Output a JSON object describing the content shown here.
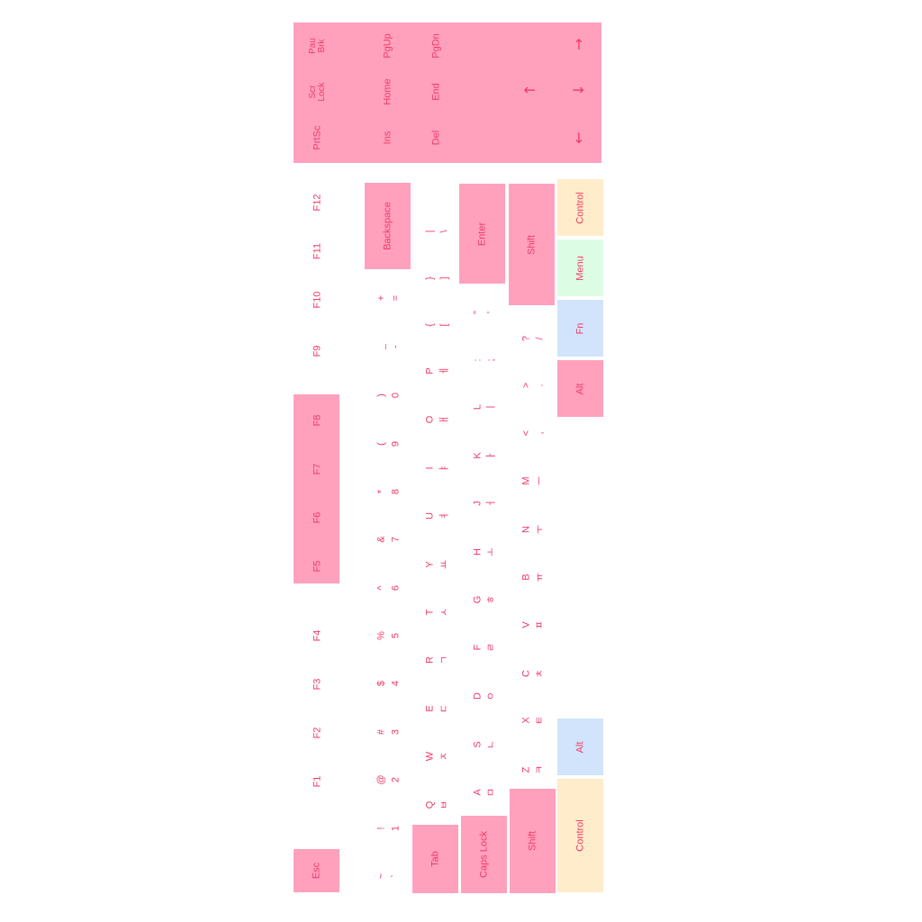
{
  "colors": {
    "pink": "#ffa1bd",
    "cream": "#ffecca",
    "mint": "#dcfde4",
    "blue": "#d1e4fb",
    "text": "#f03a6a"
  },
  "nav_cluster": {
    "prtsc": "PrtSc",
    "scrlock": "Scr\nLock",
    "pause": "Pau\nBrk",
    "ins": "Ins",
    "home": "Home",
    "pgup": "PgUp",
    "del": "Del",
    "end": "End",
    "pgdn": "PgDn",
    "arrow_up": "↑",
    "arrow_left": "←",
    "arrow_down": "↓",
    "arrow_right": "→"
  },
  "function_row": {
    "esc": "Esc",
    "keys": [
      "F1",
      "F2",
      "F3",
      "F4",
      "F5",
      "F6",
      "F7",
      "F8",
      "F9",
      "F10",
      "F11",
      "F12"
    ]
  },
  "number_row": {
    "keys": [
      {
        "shift": "~",
        "base": "`"
      },
      {
        "shift": "!",
        "base": "1"
      },
      {
        "shift": "@",
        "base": "2"
      },
      {
        "shift": "#",
        "base": "3"
      },
      {
        "shift": "$",
        "base": "4"
      },
      {
        "shift": "%",
        "base": "5"
      },
      {
        "shift": "^",
        "base": "6"
      },
      {
        "shift": "&",
        "base": "7"
      },
      {
        "shift": "*",
        "base": "8"
      },
      {
        "shift": "(",
        "base": "9"
      },
      {
        "shift": ")",
        "base": "0"
      },
      {
        "shift": "_",
        "base": "-"
      },
      {
        "shift": "+",
        "base": "="
      }
    ],
    "backspace": "Backspace"
  },
  "top_row": {
    "tab": "Tab",
    "keys": [
      {
        "latin": "Q",
        "hangul": "ㅂ"
      },
      {
        "latin": "W",
        "hangul": "ㅈ"
      },
      {
        "latin": "E",
        "hangul": "ㄷ"
      },
      {
        "latin": "R",
        "hangul": "ㄱ"
      },
      {
        "latin": "T",
        "hangul": "ㅅ"
      },
      {
        "latin": "Y",
        "hangul": "ㅛ"
      },
      {
        "latin": "U",
        "hangul": "ㅕ"
      },
      {
        "latin": "I",
        "hangul": "ㅑ"
      },
      {
        "latin": "O",
        "hangul": "ㅐ"
      },
      {
        "latin": "P",
        "hangul": "ㅔ"
      },
      {
        "latin": "{",
        "hangul": "["
      },
      {
        "latin": "}",
        "hangul": "]"
      },
      {
        "latin": "|",
        "hangul": "\\"
      }
    ]
  },
  "home_row": {
    "caps": "Caps Lock",
    "keys": [
      {
        "latin": "A",
        "hangul": "ㅁ"
      },
      {
        "latin": "S",
        "hangul": "ㄴ"
      },
      {
        "latin": "D",
        "hangul": "ㅇ"
      },
      {
        "latin": "F",
        "hangul": "ㄹ"
      },
      {
        "latin": "G",
        "hangul": "ㅎ"
      },
      {
        "latin": "H",
        "hangul": "ㅗ"
      },
      {
        "latin": "J",
        "hangul": "ㅓ"
      },
      {
        "latin": "K",
        "hangul": "ㅏ"
      },
      {
        "latin": "L",
        "hangul": "ㅣ"
      },
      {
        "latin": ":",
        "hangul": ";"
      },
      {
        "latin": "\"",
        "hangul": "'"
      }
    ],
    "enter": "Enter"
  },
  "bottom_row": {
    "shift_left": "Shift",
    "keys": [
      {
        "latin": "Z",
        "hangul": "ㅋ"
      },
      {
        "latin": "X",
        "hangul": "ㅌ"
      },
      {
        "latin": "C",
        "hangul": "ㅊ"
      },
      {
        "latin": "V",
        "hangul": "ㅍ"
      },
      {
        "latin": "B",
        "hangul": "ㅠ"
      },
      {
        "latin": "N",
        "hangul": "ㅜ"
      },
      {
        "latin": "M",
        "hangul": "ㅡ"
      },
      {
        "latin": "<",
        "hangul": ","
      },
      {
        "latin": ">",
        "hangul": "."
      },
      {
        "latin": "?",
        "hangul": "/"
      }
    ],
    "shift_right": "Shift"
  },
  "modifier_row": {
    "control_left": "Control",
    "alt_left": "Alt",
    "alt_right": "Alt",
    "fn": "Fn",
    "menu": "Menu",
    "control_right": "Control"
  }
}
